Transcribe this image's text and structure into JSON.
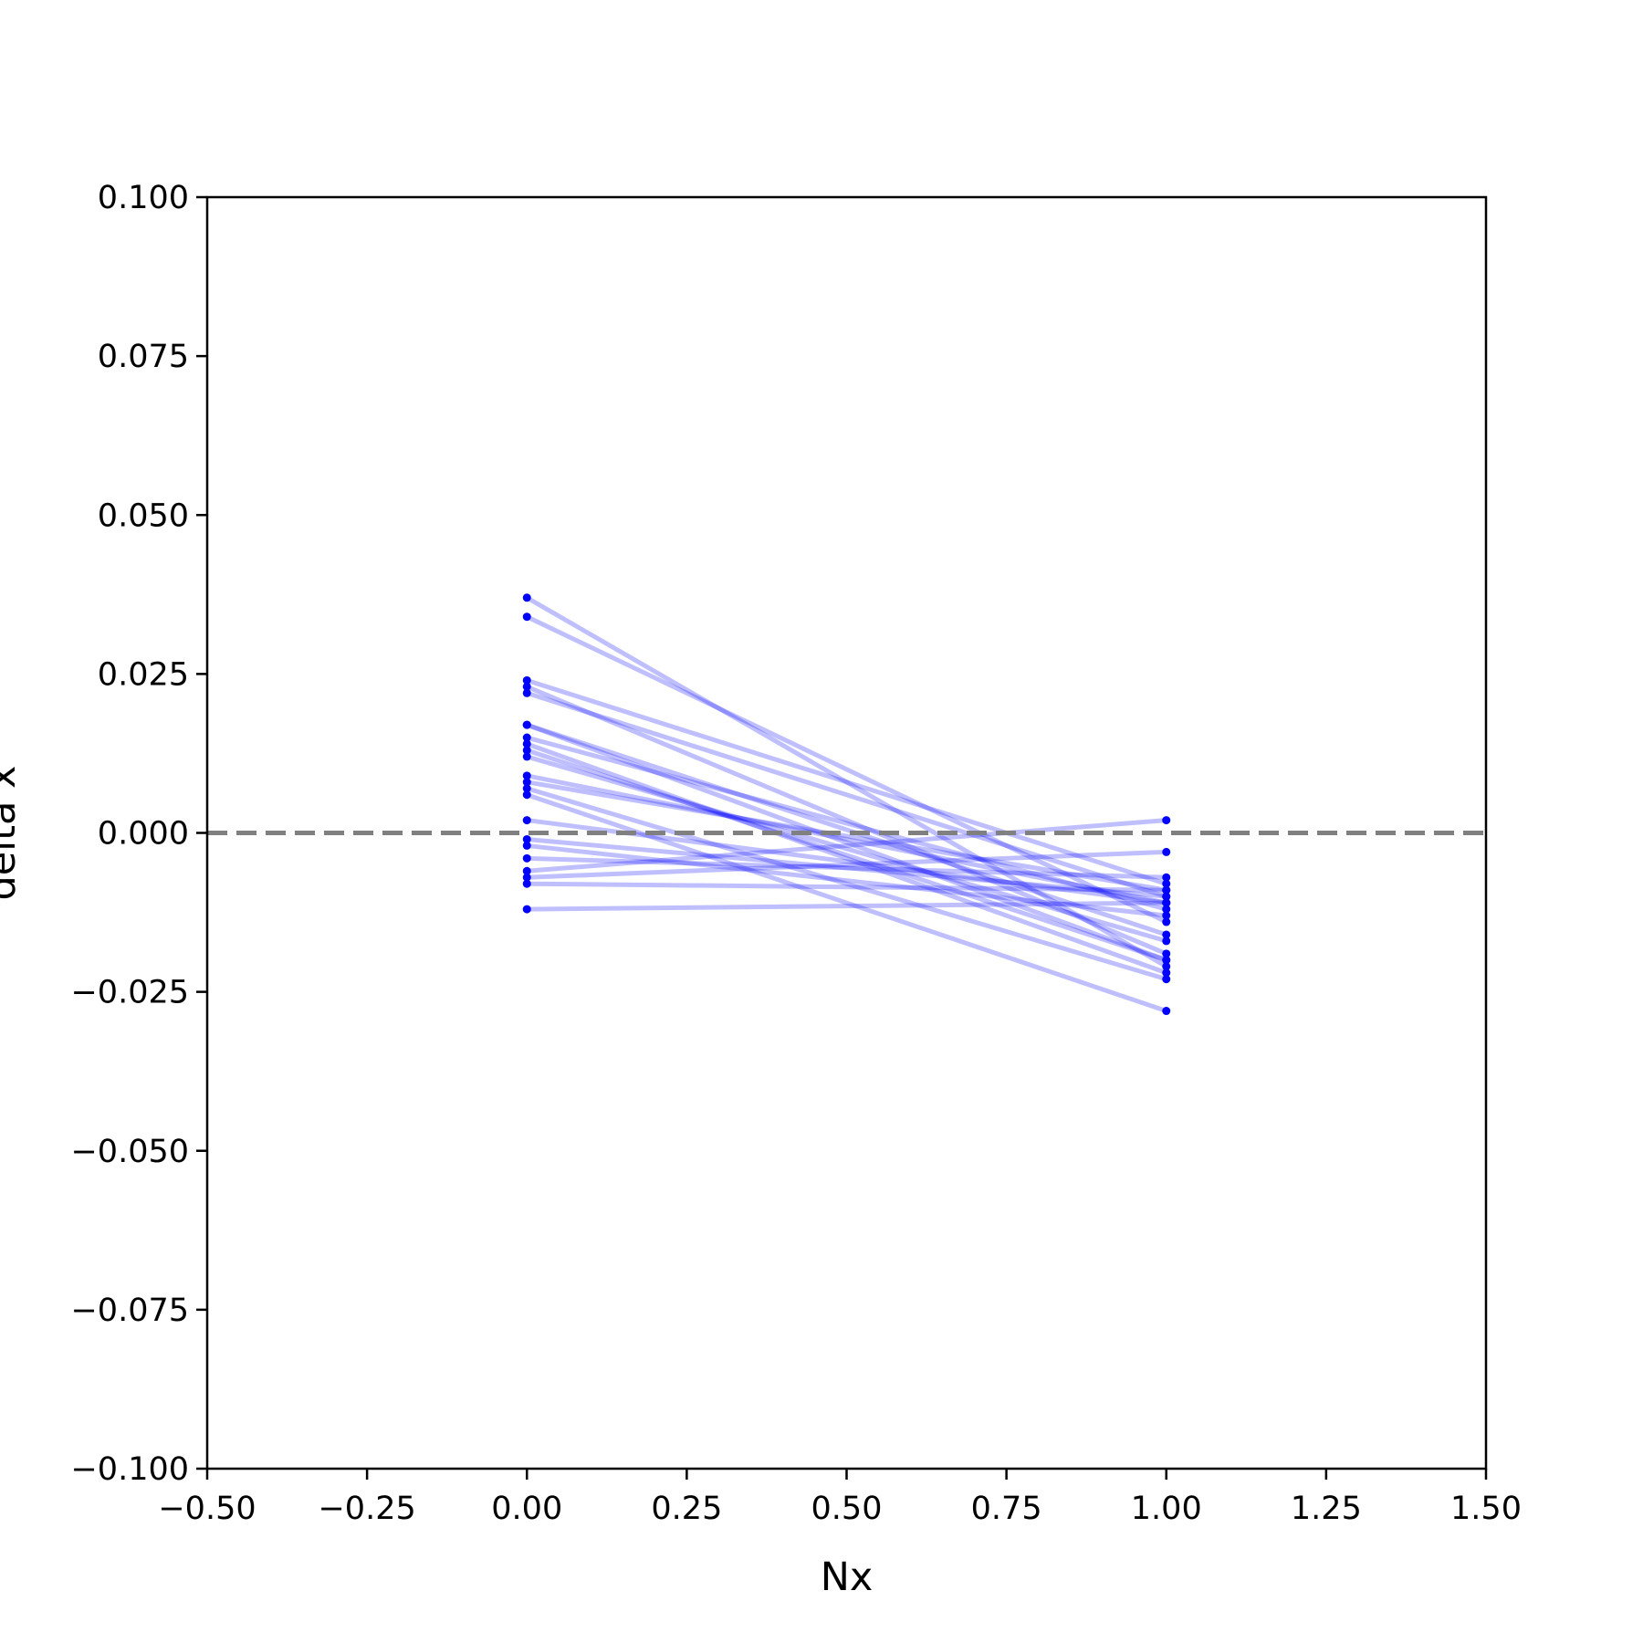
{
  "chart_data": {
    "type": "line",
    "title": "",
    "xlabel": "Nx",
    "ylabel": "delta x",
    "xlim": [
      -0.5,
      1.5
    ],
    "ylim": [
      -0.1,
      0.1
    ],
    "xticks": [
      -0.5,
      -0.25,
      0.0,
      0.25,
      0.5,
      0.75,
      1.0,
      1.25,
      1.5
    ],
    "xtick_labels": [
      "−0.50",
      "−0.25",
      "0.00",
      "0.25",
      "0.50",
      "0.75",
      "1.00",
      "1.25",
      "1.50"
    ],
    "yticks": [
      0.1,
      0.075,
      0.05,
      0.025,
      0.0,
      -0.025,
      -0.05,
      -0.075,
      -0.1
    ],
    "ytick_labels": [
      "0.100",
      "0.075",
      "0.050",
      "0.025",
      "0.000",
      "−0.025",
      "−0.050",
      "−0.075",
      "−0.100"
    ],
    "reference_line": {
      "y": 0.0,
      "style": "dashed",
      "color": "#808080"
    },
    "grid": false,
    "legend": "none",
    "line_color": "#0000ff",
    "line_alpha": 0.25,
    "x": [
      0,
      1
    ],
    "pairs": [
      [
        0.037,
        -0.021
      ],
      [
        0.034,
        -0.014
      ],
      [
        0.024,
        -0.008
      ],
      [
        0.023,
        -0.019
      ],
      [
        0.022,
        -0.01
      ],
      [
        0.017,
        -0.016
      ],
      [
        0.017,
        -0.02
      ],
      [
        0.015,
        -0.012
      ],
      [
        0.014,
        -0.022
      ],
      [
        0.013,
        -0.02
      ],
      [
        0.012,
        -0.017
      ],
      [
        0.009,
        -0.011
      ],
      [
        0.008,
        -0.009
      ],
      [
        0.007,
        -0.023
      ],
      [
        0.006,
        -0.028
      ],
      [
        0.002,
        -0.011
      ],
      [
        -0.001,
        -0.01
      ],
      [
        -0.002,
        -0.013
      ],
      [
        -0.004,
        -0.007
      ],
      [
        -0.006,
        0.002
      ],
      [
        -0.007,
        -0.003
      ],
      [
        -0.008,
        -0.009
      ],
      [
        -0.012,
        -0.011
      ]
    ]
  }
}
